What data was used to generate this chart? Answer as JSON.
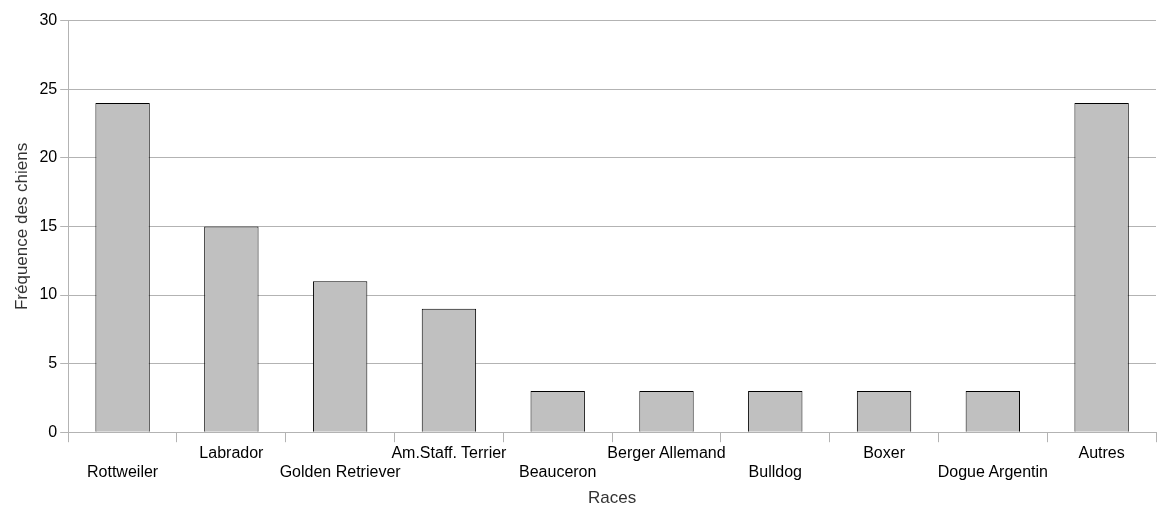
{
  "chart_data": {
    "type": "bar",
    "xlabel": "Races",
    "ylabel": "Fréquence des chiens",
    "categories": [
      "Rottweiler",
      "Labrador",
      "Golden Retriever",
      "Am.Staff. Terrier",
      "Beauceron",
      "Berger Allemand",
      "Bulldog",
      "Boxer",
      "Dogue Argentin",
      "Autres"
    ],
    "values": [
      24,
      15,
      11,
      9,
      3,
      3,
      3,
      3,
      3,
      24
    ],
    "color": "#c0c0c0",
    "ylim": [
      0,
      30
    ],
    "yticks": [
      0,
      5,
      10,
      15,
      20,
      25,
      30
    ],
    "grid": "y",
    "legend": false
  }
}
